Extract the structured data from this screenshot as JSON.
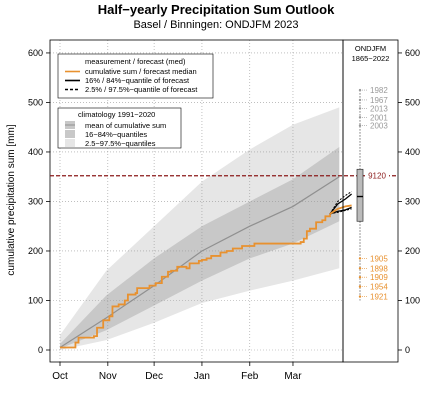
{
  "chart_data": {
    "type": "line",
    "title": "Half−yearly Precipitation Sum Outlook",
    "subtitle": "Basel / Binningen: ONDJFM 2023",
    "ylabel": "cumulative precipitation sum [mm]",
    "ylim": [
      0,
      620
    ],
    "yticks": [
      0,
      100,
      200,
      300,
      400,
      500,
      600
    ],
    "months": [
      "Oct",
      "Nov",
      "Dec",
      "Jan",
      "Feb",
      "Mar"
    ],
    "month_day": [
      0,
      31,
      61,
      92,
      123,
      151
    ],
    "grid": true,
    "legend_main": {
      "title": "measurement / forecast (med)",
      "items": [
        "cumulative sum / forecast median",
        "16% / 84%−quantile of forecast",
        "2.5% / 97.5%−quantile of forecast"
      ]
    },
    "legend_clim": {
      "title": "climatology 1991−2020",
      "items": [
        "mean of cumulative sum",
        "16−84%−quantiles",
        "2.5−97.5%−quantiles"
      ]
    },
    "climatology": {
      "day": [
        0,
        30,
        61,
        92,
        123,
        151,
        181
      ],
      "mean": [
        5,
        65,
        130,
        200,
        250,
        290,
        350
      ],
      "q16": [
        3,
        40,
        90,
        140,
        185,
        215,
        260
      ],
      "q84": [
        12,
        110,
        185,
        250,
        300,
        345,
        410
      ],
      "q025": [
        0,
        20,
        55,
        95,
        120,
        140,
        165
      ],
      "q975": [
        30,
        160,
        250,
        340,
        405,
        455,
        490
      ]
    },
    "observed": {
      "day": [
        0,
        10,
        12,
        22,
        24,
        28,
        32,
        34,
        38,
        42,
        44,
        49,
        50,
        58,
        62,
        66,
        70,
        72,
        76,
        82,
        84,
        90,
        92,
        95,
        98,
        102,
        104,
        108,
        112,
        118,
        126,
        140,
        148,
        156,
        158,
        160,
        162,
        166,
        170,
        172,
        175
      ],
      "value": [
        5,
        15,
        25,
        28,
        45,
        60,
        68,
        88,
        92,
        100,
        112,
        115,
        125,
        130,
        135,
        148,
        158,
        160,
        168,
        165,
        175,
        180,
        182,
        185,
        190,
        190,
        197,
        200,
        205,
        210,
        215,
        215,
        215,
        218,
        225,
        240,
        245,
        258,
        262,
        270,
        275
      ]
    },
    "forecast": {
      "day": [
        175,
        180,
        185,
        189
      ],
      "median": [
        275,
        285,
        290,
        292
      ],
      "q16": [
        275,
        280,
        283,
        288
      ],
      "q84": [
        275,
        295,
        305,
        315
      ],
      "q025": [
        275,
        278,
        282,
        285
      ],
      "q975": [
        275,
        300,
        312,
        320
      ]
    },
    "side_panel": {
      "title_line1": "ONDJFM",
      "title_line2": "1865−2022",
      "box": {
        "whisker_low": 100,
        "q1": 260,
        "median": 310,
        "q3": 365,
        "whisker_high": 525
      },
      "current_value": 352,
      "current_label": "9120",
      "top_years": [
        {
          "year": "1982",
          "value": 525
        },
        {
          "year": "1967",
          "value": 505
        },
        {
          "year": "2013",
          "value": 488
        },
        {
          "year": "2001",
          "value": 470
        },
        {
          "year": "2003",
          "value": 453
        }
      ],
      "bottom_years": [
        {
          "year": "1905",
          "value": 185
        },
        {
          "year": "1898",
          "value": 165
        },
        {
          "year": "1909",
          "value": 147
        },
        {
          "year": "1954",
          "value": 128
        },
        {
          "year": "1921",
          "value": 108
        }
      ]
    },
    "colors": {
      "observed": "#e8912f",
      "dashed_current": "#8b1a1a",
      "clim_inner": "#c8c8c8",
      "clim_outer": "#e6e6e6",
      "clim_mean": "#909090",
      "year_top": "#999999",
      "year_bottom": "#e8912f"
    }
  }
}
